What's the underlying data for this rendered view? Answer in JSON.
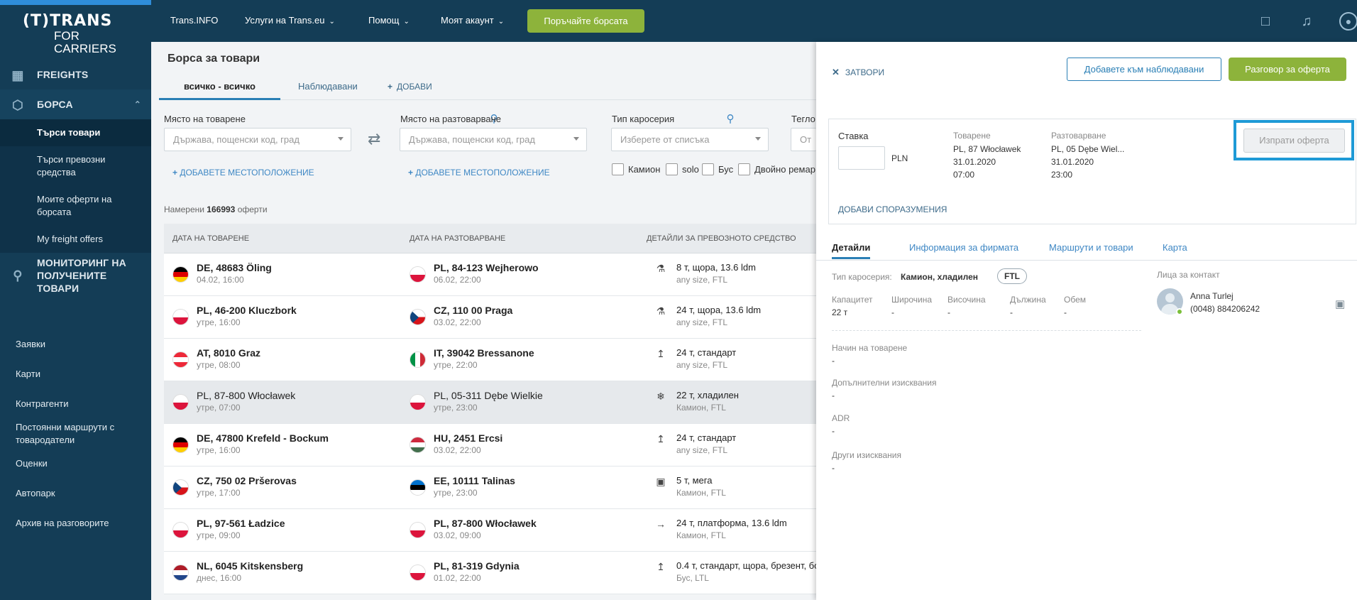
{
  "logo": {
    "line1": "(T)TRANS",
    "line2": "FOR CARRIERS"
  },
  "sidebar": {
    "main": [
      {
        "label": "FREIGHTS",
        "icon": "freights-icon"
      },
      {
        "label": "БОРСА",
        "icon": "cube-icon"
      }
    ],
    "sub": [
      "Търси товари",
      "Търси превозни средства",
      "Моите оферти на борсата",
      "My freight offers"
    ],
    "monitoring": "МОНИТОРИНГ НА ПОЛУЧЕНИТЕ ТОВАРИ",
    "secondary": [
      "Заявки",
      "Карти",
      "Контрагенти",
      "Постоянни маршрути с товародатели",
      "Оценки",
      "Автопарк",
      "Архив на разговорите"
    ]
  },
  "topbar": {
    "link1": "Trans.INFO",
    "link2": "Услуги на Trans.eu",
    "link3": "Помощ",
    "link4": "Моят акаунт",
    "cta": "Поръчайте борсата"
  },
  "main": {
    "title": "Борса за товари",
    "tabs": [
      "всичко - всичко",
      "Наблюдавани",
      "ДОБАВИ"
    ],
    "filters": {
      "loading_label": "Място на товарене",
      "loading_placeholder": "Държава, пощенски код, град",
      "unloading_label": "Място на разтоварване",
      "unloading_placeholder": "Държава, пощенски код, град",
      "body_label": "Тип каросерия",
      "body_placeholder": "Изберете от списъка",
      "weight_label": "Тегло",
      "weight_placeholder": "От",
      "add_location": "ДОБАВЕТЕ МЕСТОПОЛОЖЕНИЕ",
      "checkboxes": [
        "Камион",
        "solo",
        "Бус",
        "Двойно ремар"
      ]
    },
    "found_prefix": "Намерени",
    "found_count": "166993",
    "found_suffix": "оферти",
    "headers": [
      "ДАТА НА ТОВАРЕНЕ",
      "ДАТА НА РАЗТОВАРВАНЕ",
      "ДЕТАЙЛИ ЗА ПРЕВОЗНОТО СРЕДСТВО"
    ],
    "rows": [
      {
        "from": "DE, 48683 Öling",
        "from_date": "04.02, 16:00",
        "to": "PL, 84-123 Wejherowo",
        "to_date": "06.02, 22:00",
        "veh": "8 т, щора, 13.6 ldm",
        "veh2": "any size, FTL"
      },
      {
        "from": "PL, 46-200 Kluczbork",
        "from_date": "утре, 16:00",
        "to": "CZ, 110 00 Praga",
        "to_date": "03.02, 22:00",
        "veh": "24 т, щора, 13.6 ldm",
        "veh2": "any size, FTL"
      },
      {
        "from": "AT, 8010 Graz",
        "from_date": "утре, 08:00",
        "to": "IT, 39042 Bressanone",
        "to_date": "утре, 22:00",
        "veh": "24 т, стандарт",
        "veh2": "any size, FTL"
      },
      {
        "from": "PL, 87-800 Włocławek",
        "from_date": "утре, 07:00",
        "to": "PL, 05-311 Dębe Wielkie",
        "to_date": "утре, 23:00",
        "veh": "22 т, хладилен",
        "veh2": "Камион, FTL"
      },
      {
        "from": "DE, 47800 Krefeld - Bockum",
        "from_date": "утре, 16:00",
        "to": "HU, 2451 Ercsi",
        "to_date": "03.02, 22:00",
        "veh": "24 т, стандарт",
        "veh2": "any size, FTL"
      },
      {
        "from": "CZ, 750 02 Pršerovas",
        "from_date": "утре, 17:00",
        "to": "EE, 10111 Talinas",
        "to_date": "утре, 23:00",
        "veh": "5 т, мега",
        "veh2": "Камион, FTL"
      },
      {
        "from": "PL, 97-561 Ładzice",
        "from_date": "утре, 09:00",
        "to": "PL, 87-800 Włocławek",
        "to_date": "03.02, 09:00",
        "veh": "24 т, платформа, 13.6 ldm",
        "veh2": "Камион, FTL"
      },
      {
        "from": "NL, 6045 Kitskensberg",
        "from_date": "днес, 16:00",
        "to": "PL, 81-319 Gdynia",
        "to_date": "01.02, 22:00",
        "veh": "0.4 т, стандарт, щора, брезент, бо",
        "veh2": "Бус, LTL"
      }
    ]
  },
  "detail": {
    "close": "ЗАТВОРИ",
    "watch": "Добавете към наблюдавани",
    "chat": "Разговор за оферта",
    "rate_label": "Ставка",
    "currency": "PLN",
    "loading_label": "Товарене",
    "loading_place": "PL, 87 Włocławek",
    "loading_date": "31.01.2020",
    "loading_time": "07:00",
    "unloading_label": "Разтоварване",
    "unloading_place": "PL, 05 Dębe Wiel...",
    "unloading_date": "31.01.2020",
    "unloading_time": "23:00",
    "send": "Изпрати оферта",
    "agreements": "ДОБАВИ СПОРАЗУМЕНИЯ",
    "tabs": [
      "Детайли",
      "Информация за фирмата",
      "Маршрути и товари",
      "Карта"
    ],
    "body_label": "Тип каросерия:",
    "body_value": "Камион, хладилен",
    "ftl": "FTL",
    "cap_labels": [
      "Капацитет",
      "Широчина",
      "Височина",
      "Дължина",
      "Обем"
    ],
    "cap_values": [
      "22 т",
      "-",
      "-",
      "-",
      "-"
    ],
    "loading_method_label": "Начин на товарене",
    "loading_method_value": "-",
    "extra_label": "Допълнителни изисквания",
    "extra_value": "-",
    "adr_label": "ADR",
    "adr_value": "-",
    "other_label": "Други изисквания",
    "other_value": "-",
    "contacts_label": "Лица за контакт",
    "contact_name": "Anna Turlej",
    "contact_phone": "(0048) 884206242"
  },
  "colors": {
    "sidebar": "#143d56",
    "accent_green": "#8db33b",
    "link_blue": "#2a7fb5",
    "highlight": "#1e9ad6"
  }
}
